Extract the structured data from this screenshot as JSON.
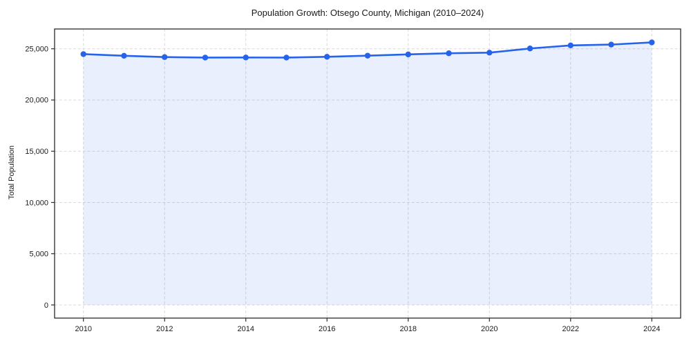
{
  "figure": {
    "background": "#ffffff"
  },
  "chart_data": {
    "type": "area",
    "title": "Population Growth: Otsego County, Michigan (2010–2024)",
    "xlabel": "",
    "ylabel": "Total Population",
    "series_name": "Total Population",
    "x": [
      2010,
      2011,
      2012,
      2013,
      2014,
      2015,
      2016,
      2017,
      2018,
      2019,
      2020,
      2021,
      2022,
      2023,
      2024
    ],
    "values": [
      24480,
      24320,
      24190,
      24140,
      24150,
      24140,
      24220,
      24330,
      24450,
      24560,
      24620,
      25030,
      25330,
      25410,
      25620
    ],
    "xticks": [
      2010,
      2012,
      2014,
      2016,
      2018,
      2020,
      2022,
      2024
    ],
    "xtick_labels": [
      "2010",
      "2012",
      "2014",
      "2016",
      "2018",
      "2020",
      "2022",
      "2024"
    ],
    "yticks": [
      0,
      5000,
      10000,
      15000,
      20000,
      25000
    ],
    "ytick_labels": [
      "0",
      "5,000",
      "10,000",
      "15,000",
      "20,000",
      "25,000"
    ],
    "xlim": [
      2009.29,
      2024.71
    ],
    "ylim": [
      -1282,
      26932
    ],
    "grid": true,
    "grid_style": "dashed",
    "legend": "none",
    "marker": "circle",
    "fill_below_to": 0,
    "colors": {
      "line": "#2563eb",
      "marker": "#2563eb",
      "fill": "#2563eb",
      "fill_opacity": 0.1,
      "grid": "#d9d9d9",
      "spine": "#2a2a2a",
      "text": "#1a1a1a"
    }
  }
}
